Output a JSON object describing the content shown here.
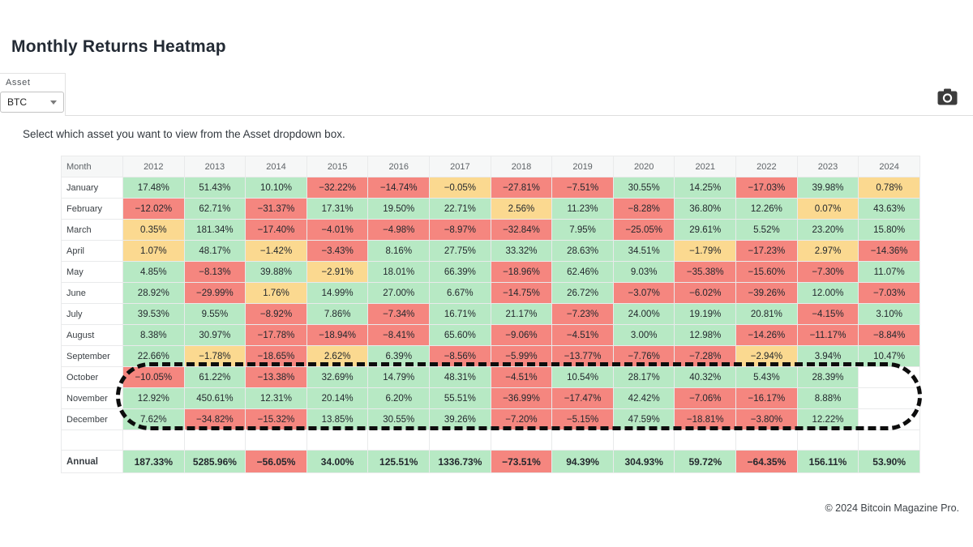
{
  "page": {
    "title": "Monthly Returns Heatmap",
    "instruction": "Select which asset you want to view from the Asset dropdown box.",
    "footer": "© 2024 Bitcoin Magazine Pro."
  },
  "toolbar": {
    "asset_label": "Asset",
    "asset_value": "BTC",
    "camera_icon": "camera-icon"
  },
  "chart_data": {
    "type": "heatmap",
    "title": "Monthly Returns Heatmap",
    "asset": "BTC",
    "row_header": "Month",
    "columns": [
      "2012",
      "2013",
      "2014",
      "2015",
      "2016",
      "2017",
      "2018",
      "2019",
      "2020",
      "2021",
      "2022",
      "2023",
      "2024"
    ],
    "rows": [
      "January",
      "February",
      "March",
      "April",
      "May",
      "June",
      "July",
      "August",
      "September",
      "October",
      "November",
      "December"
    ],
    "values": [
      [
        17.48,
        51.43,
        10.1,
        -32.22,
        -14.74,
        -0.05,
        -27.81,
        -7.51,
        30.55,
        14.25,
        -17.03,
        39.98,
        0.78
      ],
      [
        -12.02,
        62.71,
        -31.37,
        17.31,
        19.5,
        22.71,
        2.56,
        11.23,
        -8.28,
        36.8,
        12.26,
        0.07,
        43.63
      ],
      [
        0.35,
        181.34,
        -17.4,
        -4.01,
        -4.98,
        -8.97,
        -32.84,
        7.95,
        -25.05,
        29.61,
        5.52,
        23.2,
        15.8
      ],
      [
        1.07,
        48.17,
        -1.42,
        -3.43,
        8.16,
        27.75,
        33.32,
        28.63,
        34.51,
        -1.79,
        -17.23,
        2.97,
        -14.36
      ],
      [
        4.85,
        -8.13,
        39.88,
        -2.91,
        18.01,
        66.39,
        -18.96,
        62.46,
        9.03,
        -35.38,
        -15.6,
        -7.3,
        11.07
      ],
      [
        28.92,
        -29.99,
        1.76,
        14.99,
        27.0,
        6.67,
        -14.75,
        26.72,
        -3.07,
        -6.02,
        -39.26,
        12.0,
        -7.03
      ],
      [
        39.53,
        9.55,
        -8.92,
        7.86,
        -7.34,
        16.71,
        21.17,
        -7.23,
        24.0,
        19.19,
        20.81,
        -4.15,
        3.1
      ],
      [
        8.38,
        30.97,
        -17.78,
        -18.94,
        -8.41,
        65.6,
        -9.06,
        -4.51,
        3.0,
        12.98,
        -14.26,
        -11.17,
        -8.84
      ],
      [
        22.66,
        -1.78,
        -18.65,
        2.62,
        6.39,
        -8.56,
        -5.99,
        -13.77,
        -7.76,
        -7.28,
        -2.94,
        3.94,
        10.47
      ],
      [
        -10.05,
        61.22,
        -13.38,
        32.69,
        14.79,
        48.31,
        -4.51,
        10.54,
        28.17,
        40.32,
        5.43,
        28.39,
        null
      ],
      [
        12.92,
        450.61,
        12.31,
        20.14,
        6.2,
        55.51,
        -36.99,
        -17.47,
        42.42,
        -7.06,
        -16.17,
        8.88,
        null
      ],
      [
        7.62,
        -34.82,
        -15.32,
        13.85,
        30.55,
        39.26,
        -7.2,
        -5.15,
        47.59,
        -18.81,
        -3.8,
        12.22,
        null
      ]
    ],
    "annual_label": "Annual",
    "annual_values": [
      187.33,
      5285.96,
      -56.05,
      34.0,
      125.51,
      1336.73,
      -73.51,
      94.39,
      304.93,
      59.72,
      -64.35,
      156.11,
      53.9
    ],
    "colors": {
      "positive": "#b7e9c4",
      "negative": "#f5867f",
      "neutral": "#fbd990"
    },
    "color_rule": {
      "green_min": 3,
      "red_max": -3
    },
    "value_suffix": "%",
    "highlight": {
      "rows": [
        "October",
        "November",
        "December"
      ],
      "style": "black-dashed-rounded-outline"
    }
  }
}
